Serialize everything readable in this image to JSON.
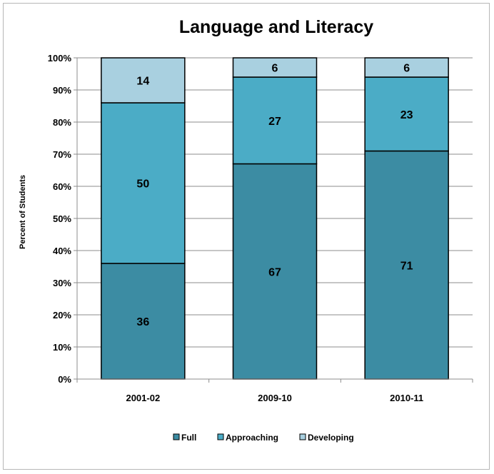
{
  "chart_data": {
    "type": "bar",
    "stacked": true,
    "title": "Language and Literacy",
    "xlabel": "",
    "ylabel": "Percent of Students",
    "categories": [
      "2001-02",
      "2009-10",
      "2010-11"
    ],
    "series": [
      {
        "name": "Full",
        "values": [
          36,
          67,
          71
        ],
        "color": "#3c8ca3"
      },
      {
        "name": "Approaching",
        "values": [
          50,
          27,
          23
        ],
        "color": "#4bacc6"
      },
      {
        "name": "Developing",
        "values": [
          14,
          6,
          6
        ],
        "color": "#a9d0e0"
      }
    ],
    "ylim": [
      0,
      100
    ],
    "yticks": [
      "0%",
      "10%",
      "20%",
      "30%",
      "40%",
      "50%",
      "60%",
      "70%",
      "80%",
      "90%",
      "100%"
    ],
    "grid": true,
    "legend_position": "bottom"
  }
}
